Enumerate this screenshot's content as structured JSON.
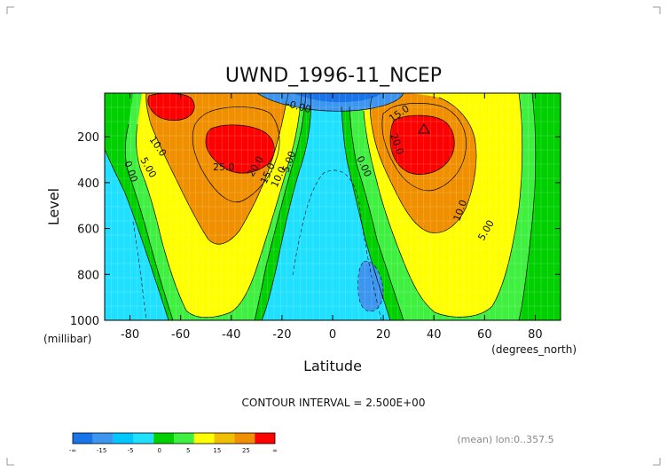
{
  "chart_data": {
    "type": "contour",
    "title": "UWND_1996-11_NCEP",
    "xlabel": "Latitude",
    "ylabel": "Level",
    "x_unit": "(degrees_north)",
    "y_unit": "(millibar)",
    "xlim": [
      -90,
      90
    ],
    "ylim": [
      1000,
      10
    ],
    "y_axis_inverted": true,
    "x_ticks": [
      "-80",
      "-60",
      "-40",
      "-20",
      "0",
      "20",
      "40",
      "60",
      "80"
    ],
    "y_ticks": [
      "200",
      "400",
      "600",
      "800",
      "1000"
    ],
    "contour_interval_text": "CONTOUR INTERVAL = 2.500E+00",
    "footnote": "(mean) lon:0..357.5",
    "contour_labels": [
      "25.0",
      "20.0",
      "15.0",
      "10.0",
      "5.00",
      "0.00",
      "-0.00"
    ],
    "colorbar": {
      "labels": [
        "-∞",
        "-15",
        "-5",
        "0",
        "5",
        "15",
        "25",
        "∞"
      ],
      "colors": [
        "#1874e8",
        "#3c96f0",
        "#00c8ff",
        "#20e0ff",
        "#00d000",
        "#40f040",
        "#ffff00",
        "#f0c000",
        "#f09000",
        "#ff0000"
      ]
    },
    "features": [
      {
        "name": "southern-jet",
        "lat": -42,
        "level": 200,
        "max_approx": 27.5
      },
      {
        "name": "northern-jet",
        "lat": 35,
        "level": 200,
        "max_approx": 27.5
      },
      {
        "name": "stratospheric-easterlies",
        "lat": -5,
        "level": 30,
        "min_approx": -15
      }
    ]
  }
}
